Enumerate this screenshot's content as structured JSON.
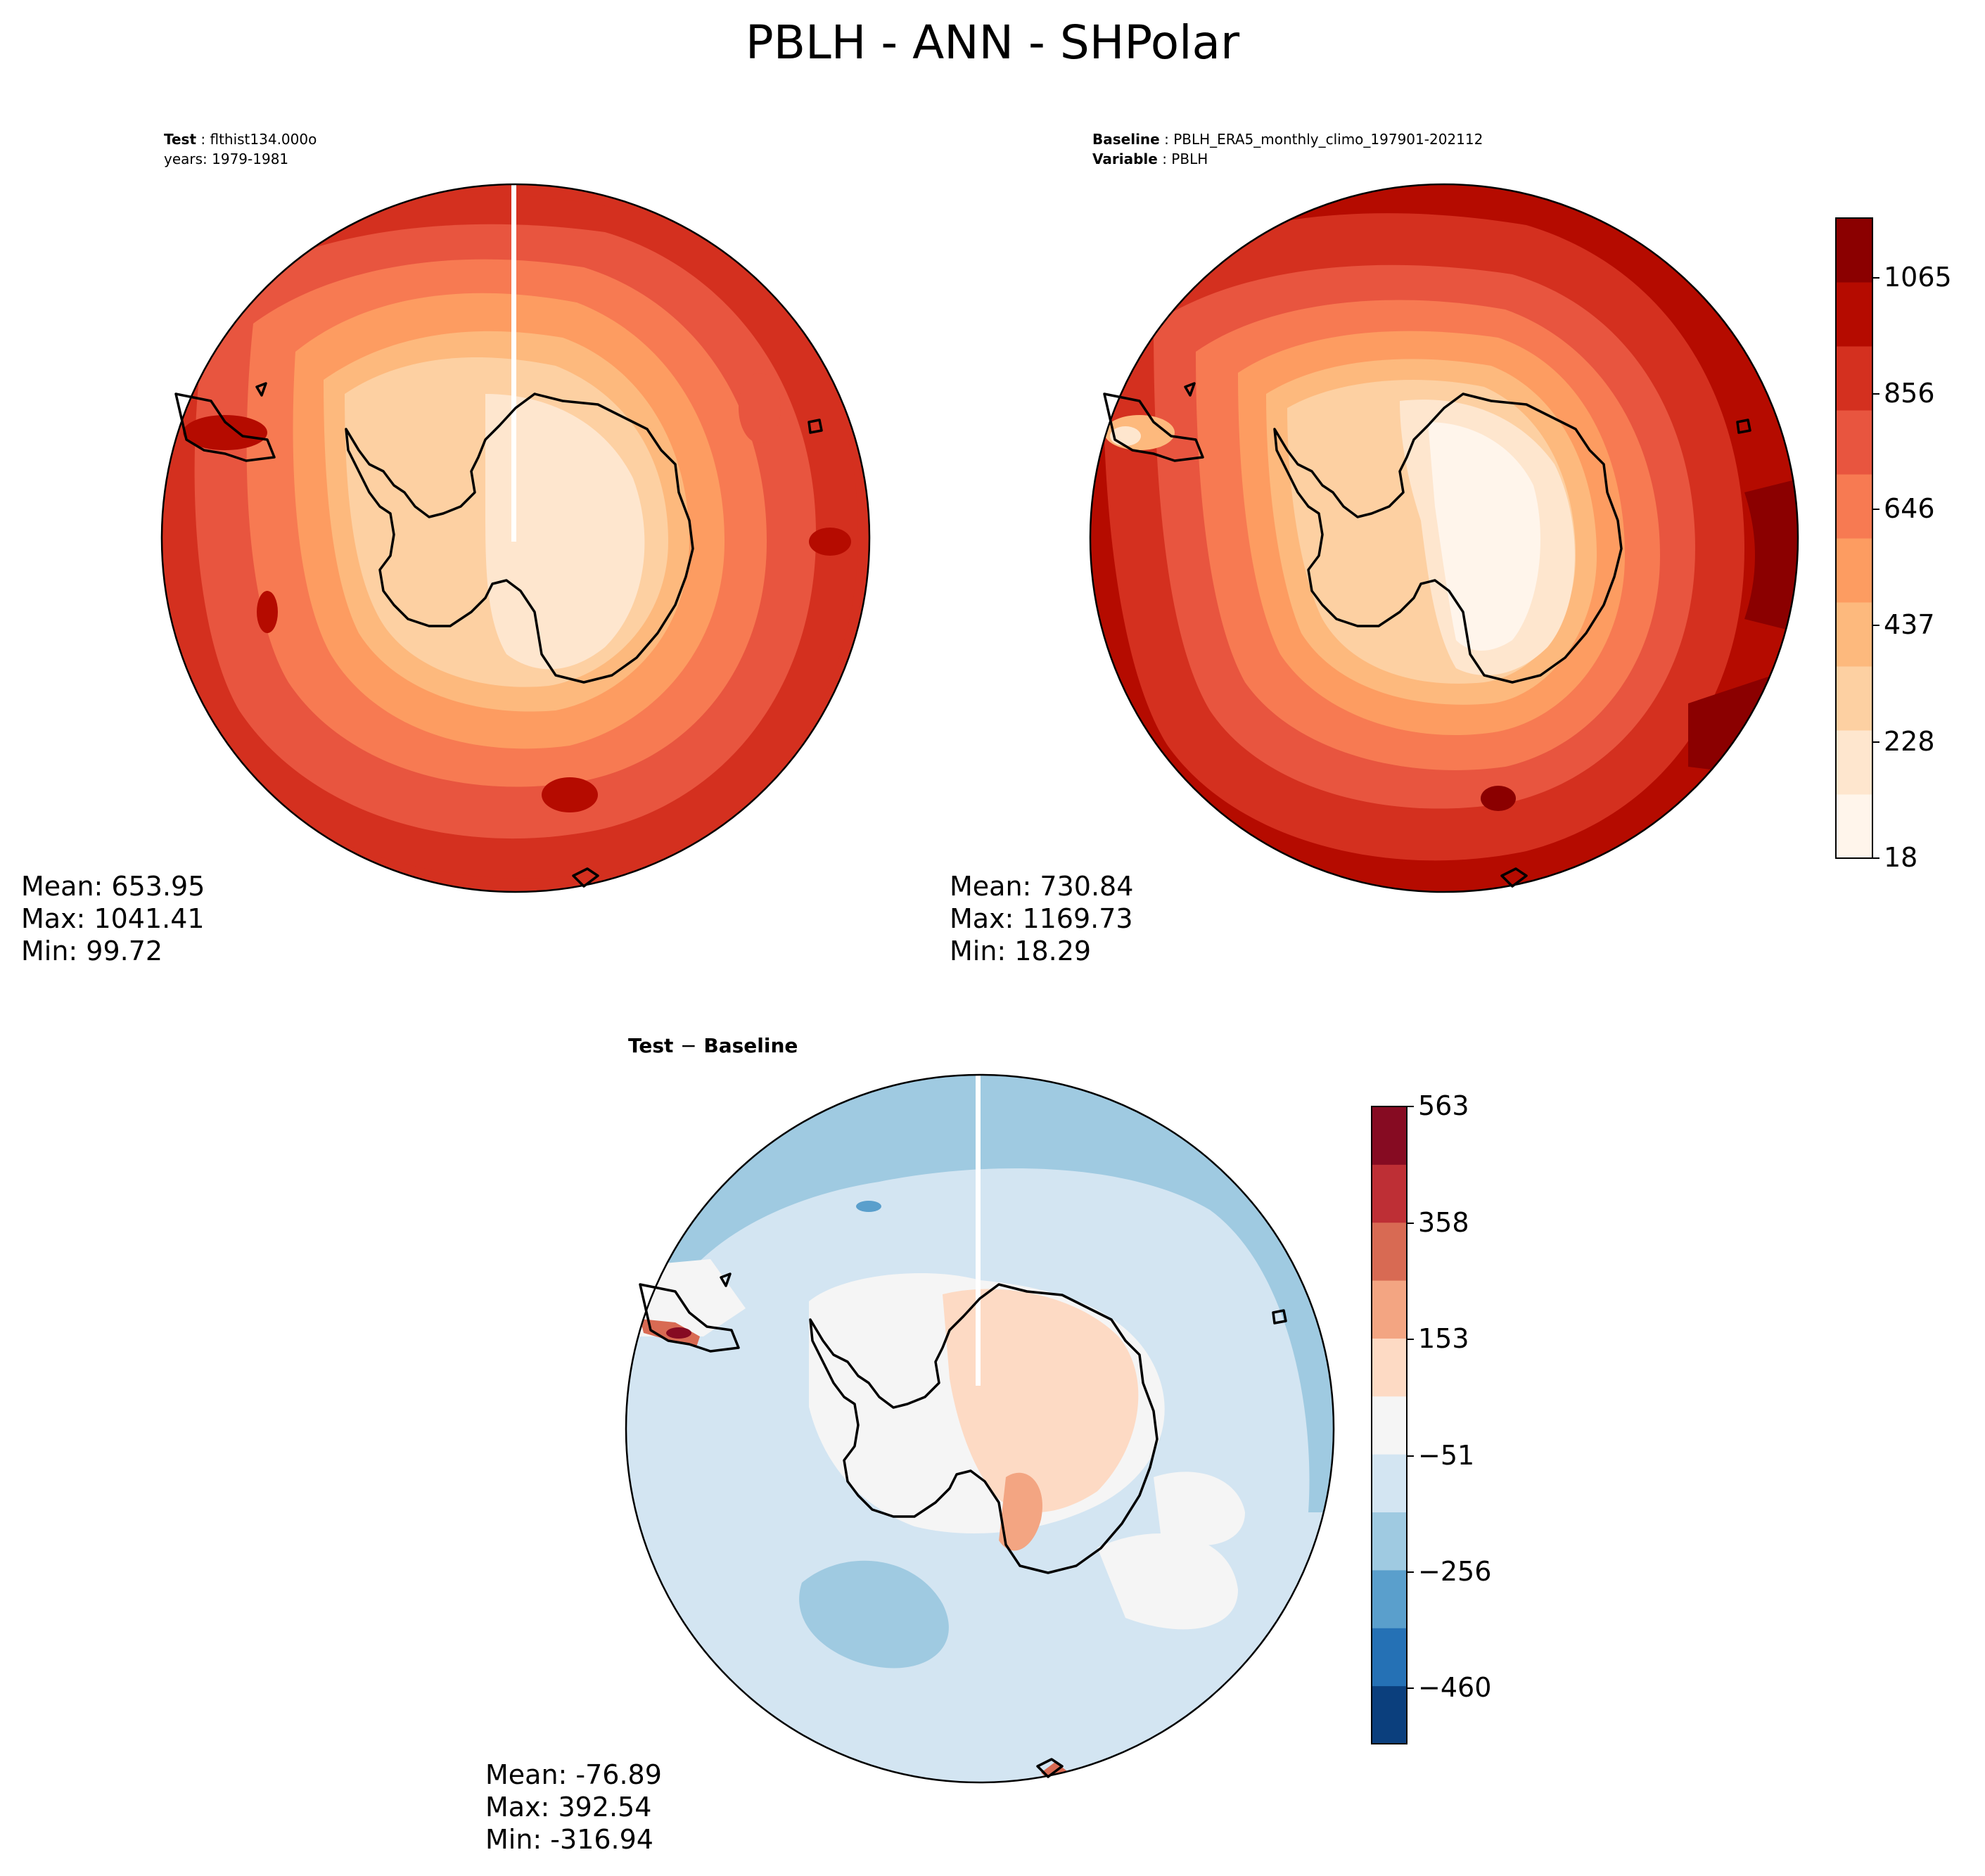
{
  "title": "PBLH - ANN - SHPolar",
  "panels": {
    "test": {
      "label_key": "Test",
      "label_value": "flthist134.000o",
      "line2": "years: 1979-1981",
      "stats": {
        "mean": "Mean: 653.95",
        "max": "Max: 1041.41",
        "min": "Min: 99.72"
      }
    },
    "baseline": {
      "label_key": "Baseline",
      "label_value": "PBLH_ERA5_monthly_climo_197901-202112",
      "var_key": "Variable",
      "var_value": "PBLH",
      "stats": {
        "mean": "Mean: 730.84",
        "max": "Max: 1169.73",
        "min": "Min: 18.29"
      }
    },
    "diff": {
      "label_key": "Test",
      "label_op": "−",
      "label_key2": "Baseline",
      "stats": {
        "mean": "Mean: -76.89",
        "max": "Max: 392.54",
        "min": "Min: -316.94"
      }
    }
  },
  "colorbars": {
    "main": {
      "ticks": [
        "18",
        "228",
        "437",
        "646",
        "856",
        "1065"
      ],
      "colors": [
        "#fff5eb",
        "#fee6ce",
        "#fdd0a2",
        "#fdb97d",
        "#fd9c61",
        "#f77a52",
        "#e8553f",
        "#d4301f",
        "#b50b00",
        "#8b0000"
      ]
    },
    "diff": {
      "ticks": [
        "−460",
        "−256",
        "−51",
        "153",
        "358",
        "563"
      ],
      "colors": [
        "#0b3f7d",
        "#2571b5",
        "#5a9fcc",
        "#9fcae1",
        "#d3e5f2",
        "#f5f5f5",
        "#fddac4",
        "#f3a582",
        "#d86a53",
        "#be2f35",
        "#860b22"
      ]
    }
  }
}
